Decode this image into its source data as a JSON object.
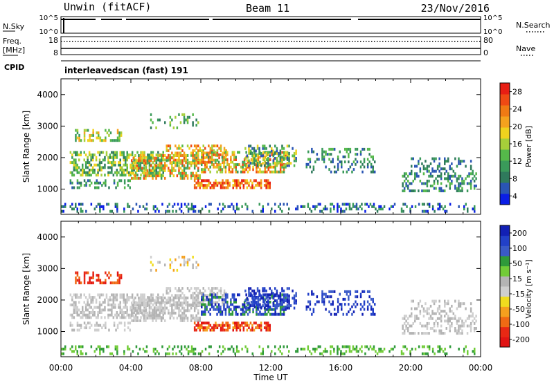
{
  "header": {
    "station": "Unwin (fitACF)",
    "beam": "Beam 11",
    "date": "23/Nov/2016"
  },
  "panels": {
    "nsky_label": "N.Sky",
    "freq_label_1": "Freq.",
    "freq_label_2": "[MHz]",
    "cpid_label": "CPID",
    "nsearch_label": "N.Search",
    "nave_label": "Nave",
    "nsky_ticks": [
      "10^5",
      "10^0"
    ],
    "nsearch_ticks": [
      "10^5",
      "10^0"
    ],
    "freq_ticks": [
      "18",
      "8"
    ],
    "nave_ticks": [
      "80",
      "0"
    ],
    "cpid_text": "interleavedscan (fast) 191"
  },
  "colors": {
    "power": [
      "#0a1ee6",
      "#2a55b4",
      "#2f7a5c",
      "#3a9a5a",
      "#55b84a",
      "#a6cf3a",
      "#f0d21e",
      "#f5a21e",
      "#f07a14",
      "#ef4a14",
      "#e81e14"
    ],
    "velocity": [
      "#1220b4",
      "#2240c8",
      "#3a5ac8",
      "#2f9a3a",
      "#72cc38",
      "#b4b4b4",
      "#cfcfcf",
      "#f0dc1e",
      "#f5a01e",
      "#f06a14",
      "#e82814",
      "#e11414"
    ]
  },
  "chart_data": [
    {
      "type": "heatmap",
      "quantity": "Power",
      "ylabel": "Slant Range [km]",
      "yticks": [
        "1000",
        "2000",
        "3000",
        "4000"
      ],
      "ylim": [
        200,
        4500
      ],
      "xlim": [
        "00:00",
        "24:00"
      ],
      "colorbar_label": "Power [dB]",
      "colorbar_ticks": [
        "28",
        "24",
        "20",
        "16",
        "12",
        "8",
        "4"
      ],
      "colorbar_range": [
        0,
        30
      ]
    },
    {
      "type": "heatmap",
      "quantity": "Velocity",
      "ylabel": "Slant Range [km]",
      "yticks": [
        "1000",
        "2000",
        "3000",
        "4000"
      ],
      "ylim": [
        200,
        4500
      ],
      "xlim": [
        "00:00",
        "24:00"
      ],
      "colorbar_label": "Velocity [m s⁻¹]",
      "colorbar_ticks": [
        "200",
        "100",
        "50",
        "15",
        "-15",
        "-50",
        "-100",
        "-200"
      ]
    }
  ],
  "xaxis": {
    "ticks": [
      "00:00",
      "04:00",
      "08:00",
      "12:00",
      "16:00",
      "20:00",
      "00:00"
    ],
    "label": "Time UT"
  }
}
